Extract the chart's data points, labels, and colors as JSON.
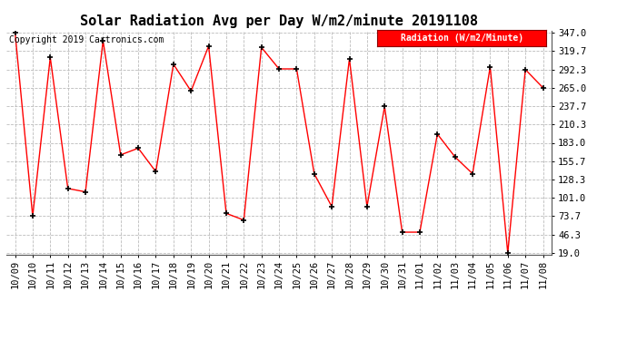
{
  "title": "Solar Radiation Avg per Day W/m2/minute 20191108",
  "copyright": "Copyright 2019 Cartronics.com",
  "legend_label": "Radiation (W/m2/Minute)",
  "dates": [
    "10/09",
    "10/10",
    "10/11",
    "10/12",
    "10/13",
    "10/14",
    "10/15",
    "10/16",
    "10/17",
    "10/18",
    "10/19",
    "10/20",
    "10/21",
    "10/22",
    "10/23",
    "10/24",
    "10/25",
    "10/26",
    "10/27",
    "10/28",
    "10/29",
    "10/30",
    "10/31",
    "11/01",
    "11/02",
    "11/03",
    "11/04",
    "11/05",
    "11/06",
    "11/07",
    "11/08"
  ],
  "values": [
    347.0,
    73.7,
    310.0,
    115.0,
    110.0,
    335.0,
    165.0,
    175.0,
    140.0,
    300.0,
    260.0,
    327.0,
    78.0,
    68.0,
    325.0,
    293.0,
    293.0,
    137.0,
    88.0,
    308.0,
    88.0,
    237.0,
    50.0,
    50.0,
    196.0,
    162.0,
    137.0,
    296.0,
    19.0,
    292.0,
    265.0
  ],
  "ylim_min": 19.0,
  "ylim_max": 347.0,
  "yticks": [
    19.0,
    46.3,
    73.7,
    101.0,
    128.3,
    155.7,
    183.0,
    210.3,
    237.7,
    265.0,
    292.3,
    319.7,
    347.0
  ],
  "line_color": "red",
  "marker": "+",
  "marker_color": "black",
  "background_color": "#ffffff",
  "plot_bg_color": "#ffffff",
  "grid_color": "#bbbbbb",
  "title_fontsize": 11,
  "tick_fontsize": 7.5,
  "copyright_fontsize": 7,
  "legend_bg": "red",
  "legend_fg": "white",
  "legend_fontsize": 7
}
